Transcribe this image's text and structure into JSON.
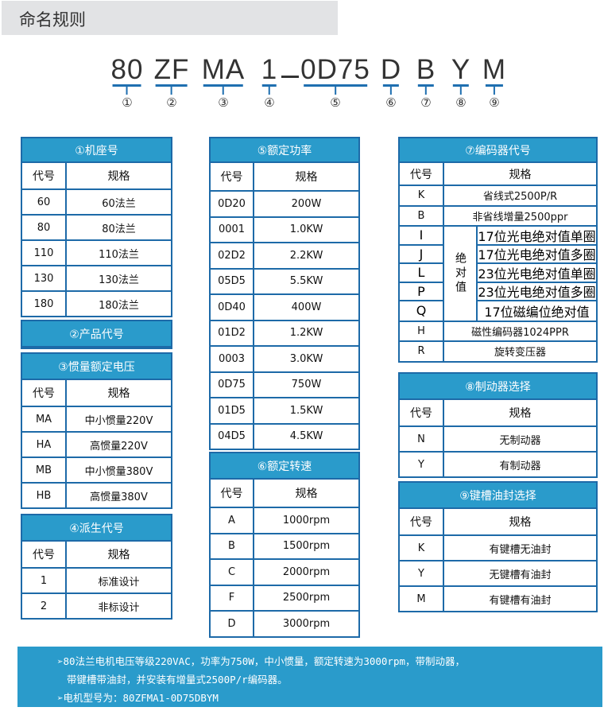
{
  "title": "命名规则",
  "model_code": {
    "parts": [
      {
        "text": "80",
        "num": "①"
      },
      {
        "text": "ZF",
        "num": "②"
      },
      {
        "text": "MA",
        "num": "③"
      },
      {
        "text": "1",
        "num": "④"
      },
      {
        "text": "0D75",
        "num": "⑤"
      },
      {
        "text": "D",
        "num": "⑥"
      },
      {
        "text": "B",
        "num": "⑦"
      },
      {
        "text": "Y",
        "num": "⑧"
      },
      {
        "text": "M",
        "num": "⑨"
      }
    ],
    "separator": "-"
  },
  "colors": {
    "header_bg": "#2a9bcb",
    "border": "#1d6aa8",
    "underline": "#1f6fb0",
    "title_bg": "#e2e3e5"
  },
  "tables": {
    "frame": {
      "title": "①机座号",
      "col_code": "代号",
      "col_spec": "规格",
      "rows": [
        {
          "code": "60",
          "spec": "60法兰"
        },
        {
          "code": "80",
          "spec": "80法兰"
        },
        {
          "code": "110",
          "spec": "110法兰"
        },
        {
          "code": "130",
          "spec": "130法兰"
        },
        {
          "code": "180",
          "spec": "180法兰"
        }
      ]
    },
    "product": {
      "title": "②产品代号"
    },
    "inertia": {
      "title": "③惯量额定电压",
      "col_code": "代号",
      "col_spec": "规格",
      "rows": [
        {
          "code": "MA",
          "spec": "中小惯量220V"
        },
        {
          "code": "HA",
          "spec": "高惯量220V"
        },
        {
          "code": "MB",
          "spec": "中小惯量380V"
        },
        {
          "code": "HB",
          "spec": "高惯量380V"
        }
      ]
    },
    "derived": {
      "title": "④派生代号",
      "col_code": "代号",
      "col_spec": "规格",
      "rows": [
        {
          "code": "1",
          "spec": "标准设计"
        },
        {
          "code": "2",
          "spec": "非标设计"
        }
      ]
    },
    "power": {
      "title": "⑤额定功率",
      "col_code": "代号",
      "col_spec": "规格",
      "rows": [
        {
          "code": "0D20",
          "spec": "200W"
        },
        {
          "code": "0001",
          "spec": "1.0KW"
        },
        {
          "code": "02D2",
          "spec": "2.2KW"
        },
        {
          "code": "05D5",
          "spec": "5.5KW"
        },
        {
          "code": "0D40",
          "spec": "400W"
        },
        {
          "code": "01D2",
          "spec": "1.2KW"
        },
        {
          "code": "0003",
          "spec": "3.0KW"
        },
        {
          "code": "0D75",
          "spec": "750W"
        },
        {
          "code": "01D5",
          "spec": "1.5KW"
        },
        {
          "code": "04D5",
          "spec": "4.5KW"
        }
      ]
    },
    "speed": {
      "title": "⑥额定转速",
      "col_code": "代号",
      "col_spec": "规格",
      "rows": [
        {
          "code": "A",
          "spec": "1000rpm"
        },
        {
          "code": "B",
          "spec": "1500rpm"
        },
        {
          "code": "C",
          "spec": "2000rpm"
        },
        {
          "code": "F",
          "spec": "2500rpm"
        },
        {
          "code": "D",
          "spec": "3000rpm"
        }
      ]
    },
    "encoder": {
      "title": "⑦编码器代号",
      "col_code": "代号",
      "col_spec": "规格",
      "rows": [
        {
          "code": "K",
          "spec": "省线式2500P/R"
        },
        {
          "code": "B",
          "spec": "非省线增量2500ppr"
        }
      ],
      "group_label": "绝对值",
      "group_rows": [
        {
          "code": "I",
          "spec": "17位光电绝对值单圈"
        },
        {
          "code": "J",
          "spec": "17位光电绝对值多圈"
        },
        {
          "code": "L",
          "spec": "23位光电绝对值单圈"
        },
        {
          "code": "P",
          "spec": "23位光电绝对值多圈"
        },
        {
          "code": "Q",
          "spec": "17位磁编位绝对值"
        }
      ],
      "tail_rows": [
        {
          "code": "H",
          "spec": "磁性编码器1024PPR"
        },
        {
          "code": "R",
          "spec": "旋转变压器"
        }
      ]
    },
    "brake": {
      "title": "⑧制动器选择",
      "col_code": "代号",
      "col_spec": "规格",
      "rows": [
        {
          "code": "N",
          "spec": "无制动器"
        },
        {
          "code": "Y",
          "spec": "有制动器"
        }
      ]
    },
    "keyway": {
      "title": "⑨键槽油封选择",
      "col_code": "代号",
      "col_spec": "规格",
      "rows": [
        {
          "code": "K",
          "spec": "有键槽无油封"
        },
        {
          "code": "Y",
          "spec": "无键槽有油封"
        },
        {
          "code": "M",
          "spec": "有键槽有油封"
        }
      ]
    }
  },
  "footer": {
    "line1": "➢80法兰电机电压等级220VAC，功率为750W，中小惯量，额定转速为3000rpm，带制动器，",
    "line2": "带键槽带油封，并安装有增量式2500P/r编码器。",
    "line3": "➢电机型号为：80ZFMA1-0D75DBYM"
  }
}
